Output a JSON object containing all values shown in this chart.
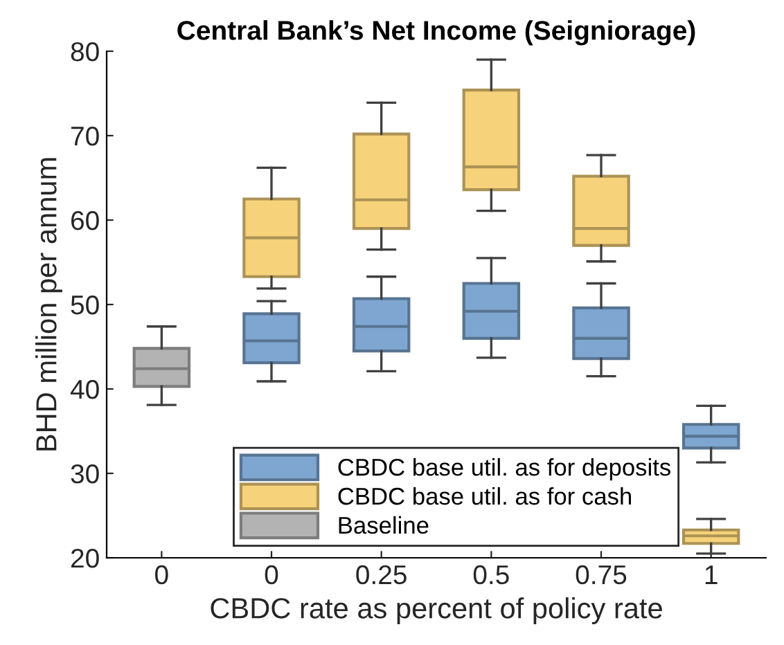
{
  "chart_data": {
    "type": "box",
    "title": "Central Bank’s Net Income (Seigniorage)",
    "xlabel": "CBDC rate as percent of policy rate",
    "ylabel": "BHD million per annum",
    "categories": [
      "0",
      "0",
      "0.25",
      "0.5",
      "0.75",
      "1"
    ],
    "ylim": [
      20,
      80
    ],
    "yticks": [
      20,
      30,
      40,
      50,
      60,
      70,
      80
    ],
    "grid": false,
    "legend": "bottom",
    "series": [
      {
        "name": "CBDC base util. as for deposits",
        "color": "#7ea6d0",
        "boxes": [
          null,
          {
            "low": 40.9,
            "q1": 43.1,
            "median": 45.7,
            "q3": 48.9,
            "high": 50.4
          },
          {
            "low": 42.1,
            "q1": 44.5,
            "median": 47.4,
            "q3": 50.7,
            "high": 53.3
          },
          {
            "low": 43.7,
            "q1": 46.0,
            "median": 49.2,
            "q3": 52.5,
            "high": 55.5
          },
          {
            "low": 41.5,
            "q1": 43.6,
            "median": 46.0,
            "q3": 49.6,
            "high": 52.5
          },
          {
            "low": 31.3,
            "q1": 33.0,
            "median": 34.4,
            "q3": 35.8,
            "high": 38.0
          }
        ]
      },
      {
        "name": "CBDC base util. as for cash",
        "color": "#f6d27a",
        "boxes": [
          null,
          {
            "low": 51.9,
            "q1": 53.3,
            "median": 57.9,
            "q3": 62.5,
            "high": 66.2
          },
          {
            "low": 56.5,
            "q1": 59.0,
            "median": 62.4,
            "q3": 70.2,
            "high": 73.9
          },
          {
            "low": 61.1,
            "q1": 63.6,
            "median": 66.3,
            "q3": 75.4,
            "high": 79.0
          },
          {
            "low": 55.1,
            "q1": 57.0,
            "median": 59.0,
            "q3": 65.2,
            "high": 67.7
          },
          {
            "low": 20.5,
            "q1": 21.7,
            "median": 22.6,
            "q3": 23.3,
            "high": 24.6
          }
        ]
      },
      {
        "name": "Baseline",
        "color": "#b3b3b3",
        "boxes": [
          {
            "low": 38.1,
            "q1": 40.3,
            "median": 42.4,
            "q3": 44.8,
            "high": 47.4
          },
          null,
          null,
          null,
          null,
          null
        ]
      }
    ]
  }
}
